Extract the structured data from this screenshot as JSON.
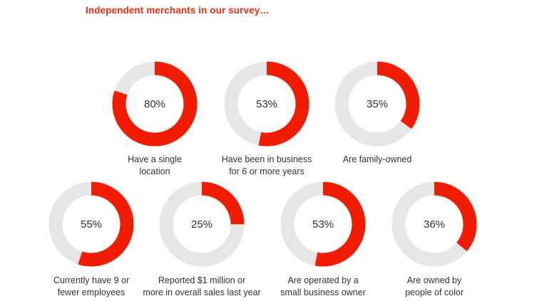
{
  "title": "Independent merchants in our survey…",
  "colors": {
    "accent": "#f21d00",
    "track": "#e6e6e6",
    "text": "#333333",
    "title": "#f02d12"
  },
  "chart_data": {
    "type": "pie",
    "variant": "donut",
    "items": [
      {
        "value": 80,
        "label": "80%",
        "caption": [
          "Have a single",
          "location"
        ]
      },
      {
        "value": 53,
        "label": "53%",
        "caption": [
          "Have been in business",
          "for 6 or more years"
        ]
      },
      {
        "value": 35,
        "label": "35%",
        "caption": [
          "Are family-owned"
        ]
      },
      {
        "value": 55,
        "label": "55%",
        "caption": [
          "Currently have 9 or",
          "fewer employees"
        ]
      },
      {
        "value": 25,
        "label": "25%",
        "caption": [
          "Reported $1 million or",
          "more in overall sales last year"
        ]
      },
      {
        "value": 53,
        "label": "53%",
        "caption": [
          "Are operated by a",
          "small business owner"
        ]
      },
      {
        "value": 36,
        "label": "36%",
        "caption": [
          "Are owned by",
          "people of color"
        ]
      }
    ]
  }
}
